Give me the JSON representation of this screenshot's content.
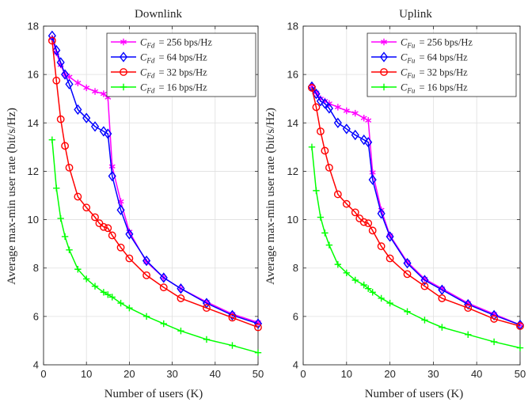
{
  "y_axis_label": "Average max-min user rate (bit/s/Hz)",
  "chart_data": [
    {
      "type": "line",
      "title": "Downlink",
      "xlabel": "Number of users (K)",
      "ylabel": "Average max-min user rate (bit/s/Hz)",
      "xlim": [
        0,
        50
      ],
      "ylim": [
        4,
        18
      ],
      "xticks": [
        0,
        10,
        20,
        30,
        40,
        50
      ],
      "yticks": [
        4,
        6,
        8,
        10,
        12,
        14,
        16,
        18
      ],
      "grid": true,
      "legend_position": "top-right",
      "series": [
        {
          "name": "C_Fd = 256 bps/Hz",
          "legend_sub": "Fd",
          "legend_value": "= 256 bps/Hz",
          "color": "#ff00ff",
          "marker": "asterisk",
          "x": [
            2,
            3,
            4,
            5,
            6,
            8,
            10,
            12,
            14,
            15,
            16,
            18,
            20,
            24,
            28,
            32,
            38,
            44,
            50
          ],
          "y": [
            17.5,
            16.9,
            16.4,
            16.0,
            15.9,
            15.65,
            15.45,
            15.3,
            15.2,
            15.05,
            12.2,
            10.75,
            9.5,
            8.25,
            7.6,
            7.15,
            6.6,
            6.1,
            5.75
          ]
        },
        {
          "name": "C_Fd = 64 bps/Hz",
          "legend_sub": "Fd",
          "legend_value": "= 64 bps/Hz",
          "color": "#0000ff",
          "marker": "diamond",
          "x": [
            2,
            3,
            4,
            5,
            6,
            8,
            10,
            12,
            14,
            15,
            16,
            18,
            20,
            24,
            28,
            32,
            38,
            44,
            50
          ],
          "y": [
            17.6,
            17.0,
            16.5,
            16.0,
            15.6,
            14.55,
            14.2,
            13.85,
            13.65,
            13.55,
            11.8,
            10.4,
            9.4,
            8.3,
            7.6,
            7.15,
            6.55,
            6.05,
            5.7
          ]
        },
        {
          "name": "C_Fd = 32 bps/Hz",
          "legend_sub": "Fd",
          "legend_value": "= 32 bps/Hz",
          "color": "#ff0000",
          "marker": "circle",
          "x": [
            2,
            3,
            4,
            5,
            6,
            8,
            10,
            12,
            13,
            14,
            15,
            16,
            18,
            20,
            24,
            28,
            32,
            38,
            44,
            50
          ],
          "y": [
            17.4,
            15.75,
            14.15,
            13.05,
            12.15,
            10.95,
            10.5,
            10.1,
            9.85,
            9.7,
            9.65,
            9.35,
            8.85,
            8.4,
            7.7,
            7.2,
            6.75,
            6.35,
            5.95,
            5.55
          ]
        },
        {
          "name": "C_Fd = 16 bps/Hz",
          "legend_sub": "Fd",
          "legend_value": "= 16 bps/Hz",
          "color": "#00ff00",
          "marker": "plus",
          "x": [
            2,
            3,
            4,
            5,
            6,
            8,
            10,
            12,
            14,
            15,
            16,
            18,
            20,
            24,
            28,
            32,
            38,
            44,
            50
          ],
          "y": [
            13.3,
            11.3,
            10.05,
            9.3,
            8.75,
            7.95,
            7.55,
            7.25,
            7.0,
            6.9,
            6.8,
            6.55,
            6.35,
            6.0,
            5.7,
            5.4,
            5.05,
            4.8,
            4.5
          ]
        }
      ]
    },
    {
      "type": "line",
      "title": "Uplink",
      "xlabel": "Number of users (K)",
      "ylabel": "",
      "xlim": [
        0,
        50
      ],
      "ylim": [
        4,
        18
      ],
      "xticks": [
        0,
        10,
        20,
        30,
        40,
        50
      ],
      "yticks": [
        4,
        6,
        8,
        10,
        12,
        14,
        16,
        18
      ],
      "grid": true,
      "legend_position": "top-right",
      "series": [
        {
          "name": "C_Fu = 256 bps/Hz",
          "legend_sub": "Fu",
          "legend_value": "= 256 bps/Hz",
          "color": "#ff00ff",
          "marker": "asterisk",
          "x": [
            2,
            3,
            4,
            5,
            6,
            8,
            10,
            12,
            14,
            15,
            16,
            18,
            20,
            24,
            28,
            32,
            38,
            44,
            50
          ],
          "y": [
            15.5,
            15.25,
            15.0,
            14.9,
            14.8,
            14.65,
            14.5,
            14.4,
            14.2,
            14.1,
            11.95,
            10.4,
            9.35,
            8.25,
            7.55,
            7.15,
            6.55,
            6.1,
            5.65
          ]
        },
        {
          "name": "C_Fu = 64 bps/Hz",
          "legend_sub": "Fu",
          "legend_value": "= 64 bps/Hz",
          "color": "#0000ff",
          "marker": "diamond",
          "x": [
            2,
            3,
            4,
            5,
            6,
            8,
            10,
            12,
            14,
            15,
            16,
            18,
            20,
            24,
            28,
            32,
            38,
            44,
            50
          ],
          "y": [
            15.5,
            15.2,
            14.9,
            14.8,
            14.6,
            14.0,
            13.75,
            13.5,
            13.3,
            13.2,
            11.65,
            10.25,
            9.3,
            8.2,
            7.5,
            7.1,
            6.5,
            6.05,
            5.65
          ]
        },
        {
          "name": "C_Fu = 32 bps/Hz",
          "legend_sub": "Fu",
          "legend_value": "= 32 bps/Hz",
          "color": "#ff0000",
          "marker": "circle",
          "x": [
            2,
            3,
            4,
            5,
            6,
            8,
            10,
            12,
            13,
            14,
            15,
            16,
            18,
            20,
            24,
            28,
            32,
            38,
            44,
            50
          ],
          "y": [
            15.45,
            14.65,
            13.65,
            12.85,
            12.15,
            11.05,
            10.65,
            10.3,
            10.05,
            9.9,
            9.85,
            9.55,
            8.9,
            8.4,
            7.75,
            7.25,
            6.75,
            6.35,
            5.9,
            5.6
          ]
        },
        {
          "name": "C_Fu = 16 bps/Hz",
          "legend_sub": "Fu",
          "legend_value": "= 16 bps/Hz",
          "color": "#00ff00",
          "marker": "plus",
          "x": [
            2,
            3,
            4,
            5,
            6,
            8,
            10,
            12,
            14,
            15,
            16,
            18,
            20,
            24,
            28,
            32,
            38,
            44,
            50
          ],
          "y": [
            13.0,
            11.2,
            10.1,
            9.45,
            8.95,
            8.15,
            7.8,
            7.5,
            7.3,
            7.15,
            7.0,
            6.75,
            6.55,
            6.2,
            5.85,
            5.55,
            5.25,
            4.95,
            4.7
          ]
        }
      ]
    }
  ]
}
